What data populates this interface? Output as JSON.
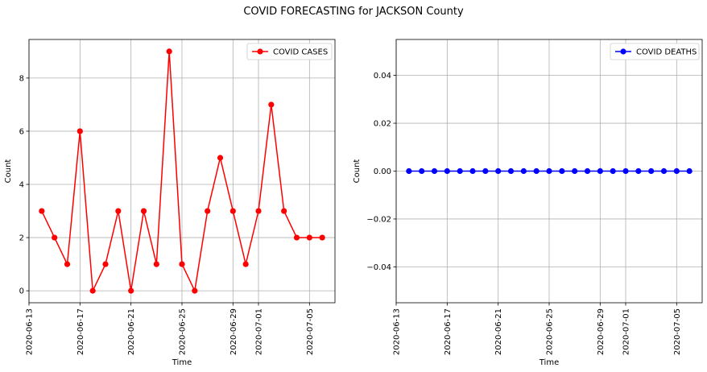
{
  "suptitle": "COVID FORECASTING for JACKSON County",
  "chart_data": [
    {
      "type": "line",
      "xlabel": "Time",
      "ylabel": "Count",
      "x": [
        "2020-06-14",
        "2020-06-15",
        "2020-06-16",
        "2020-06-17",
        "2020-06-18",
        "2020-06-19",
        "2020-06-20",
        "2020-06-21",
        "2020-06-22",
        "2020-06-23",
        "2020-06-24",
        "2020-06-25",
        "2020-06-26",
        "2020-06-27",
        "2020-06-28",
        "2020-06-29",
        "2020-06-30",
        "2020-07-01",
        "2020-07-02",
        "2020-07-03",
        "2020-07-04",
        "2020-07-05",
        "2020-07-06"
      ],
      "series": [
        {
          "name": "COVID CASES",
          "color": "#ff0000",
          "values": [
            3,
            2,
            1,
            6,
            0,
            1,
            3,
            0,
            3,
            1,
            9,
            1,
            0,
            3,
            5,
            3,
            1,
            3,
            7,
            3,
            2,
            2,
            2
          ]
        }
      ],
      "xlim": [
        "2020-06-13",
        "2020-07-07"
      ],
      "ylim": [
        -0.45,
        9.45
      ],
      "xticks": [
        "2020-06-13",
        "2020-06-17",
        "2020-06-21",
        "2020-06-25",
        "2020-06-29",
        "2020-07-01",
        "2020-07-05"
      ],
      "yticks": [
        0,
        2,
        4,
        6,
        8
      ],
      "ytick_labels": [
        "0",
        "2",
        "4",
        "6",
        "8"
      ],
      "grid": true,
      "legend": "upper-right"
    },
    {
      "type": "line",
      "xlabel": "Time",
      "ylabel": "Count",
      "x": [
        "2020-06-14",
        "2020-06-15",
        "2020-06-16",
        "2020-06-17",
        "2020-06-18",
        "2020-06-19",
        "2020-06-20",
        "2020-06-21",
        "2020-06-22",
        "2020-06-23",
        "2020-06-24",
        "2020-06-25",
        "2020-06-26",
        "2020-06-27",
        "2020-06-28",
        "2020-06-29",
        "2020-06-30",
        "2020-07-01",
        "2020-07-02",
        "2020-07-03",
        "2020-07-04",
        "2020-07-05",
        "2020-07-06"
      ],
      "series": [
        {
          "name": "COVID DEATHS",
          "color": "#0000ff",
          "values": [
            0,
            0,
            0,
            0,
            0,
            0,
            0,
            0,
            0,
            0,
            0,
            0,
            0,
            0,
            0,
            0,
            0,
            0,
            0,
            0,
            0,
            0,
            0
          ]
        }
      ],
      "xlim": [
        "2020-06-13",
        "2020-07-07"
      ],
      "ylim": [
        -0.055,
        0.055
      ],
      "xticks": [
        "2020-06-13",
        "2020-06-17",
        "2020-06-21",
        "2020-06-25",
        "2020-06-29",
        "2020-07-01",
        "2020-07-05"
      ],
      "yticks": [
        -0.04,
        -0.02,
        0.0,
        0.02,
        0.04
      ],
      "ytick_labels": [
        "−0.04",
        "−0.02",
        "0.00",
        "0.02",
        "0.04"
      ],
      "grid": true,
      "legend": "upper-right"
    }
  ]
}
